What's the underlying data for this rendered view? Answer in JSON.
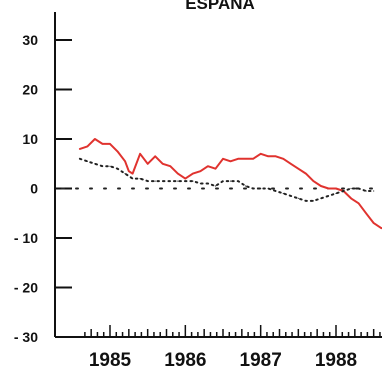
{
  "chart_data": {
    "type": "line",
    "title": "ESPANA",
    "xlabel": "",
    "ylabel": "",
    "ylim": [
      -30,
      30
    ],
    "xlim": [
      1984.6,
      1988.7
    ],
    "yticks": [
      30,
      20,
      10,
      0,
      -10,
      -20,
      -30
    ],
    "ytick_labels": [
      "30",
      "20",
      "10",
      "0",
      "- 10",
      "- 20",
      "- 30"
    ],
    "xticks": [
      1985,
      1986,
      1987,
      1988
    ],
    "xtick_labels": [
      "1985",
      "1986",
      "1987",
      "1988"
    ],
    "grid": false,
    "zero_line": "dash-dot",
    "series": [
      {
        "style": "solid",
        "color": "#e0332f",
        "x": [
          1984.6,
          1984.7,
          1984.8,
          1984.9,
          1985.0,
          1985.1,
          1985.2,
          1985.25,
          1985.3,
          1985.4,
          1985.5,
          1985.6,
          1985.7,
          1985.8,
          1985.9,
          1986.0,
          1986.1,
          1986.2,
          1986.3,
          1986.4,
          1986.5,
          1986.6,
          1986.7,
          1986.8,
          1986.9,
          1987.0,
          1987.1,
          1987.2,
          1987.3,
          1987.4,
          1987.5,
          1987.6,
          1987.7,
          1987.8,
          1987.9,
          1988.0,
          1988.1,
          1988.2,
          1988.3,
          1988.4,
          1988.5,
          1988.6,
          1988.7
        ],
        "values": [
          8,
          8.5,
          10,
          9,
          9,
          7.5,
          5.5,
          3.5,
          3,
          7,
          5,
          6.5,
          5,
          4.5,
          3,
          2,
          3,
          3.5,
          4.5,
          4,
          6,
          5.5,
          6,
          6,
          6,
          7,
          6.5,
          6.5,
          6,
          5,
          4,
          3,
          1.5,
          0.5,
          0,
          0,
          -0.5,
          -2,
          -3,
          -5,
          -7,
          -8,
          -8
        ]
      },
      {
        "style": "dotted",
        "color": "#222222",
        "x": [
          1984.6,
          1984.7,
          1984.8,
          1984.9,
          1985.0,
          1985.1,
          1985.2,
          1985.3,
          1985.4,
          1985.5,
          1985.6,
          1985.7,
          1985.8,
          1985.9,
          1986.0,
          1986.1,
          1986.2,
          1986.3,
          1986.4,
          1986.5,
          1986.6,
          1986.7,
          1986.8,
          1986.9,
          1987.0,
          1987.1,
          1987.2,
          1987.3,
          1987.4,
          1987.5,
          1987.6,
          1987.7,
          1987.8,
          1987.9,
          1988.0,
          1988.1,
          1988.2,
          1988.3,
          1988.4,
          1988.5
        ],
        "values": [
          6,
          5.5,
          5,
          4.5,
          4.5,
          4,
          3,
          2,
          2,
          1.5,
          1.5,
          1.5,
          1.5,
          1.5,
          1.5,
          1.5,
          1,
          1,
          0.5,
          1.5,
          1.5,
          1.5,
          0.5,
          0,
          0,
          0,
          -0.5,
          -1,
          -1.5,
          -2,
          -2.5,
          -2.5,
          -2,
          -1.5,
          -1,
          -0.5,
          0,
          0,
          -0.5,
          -0.5
        ]
      }
    ]
  }
}
